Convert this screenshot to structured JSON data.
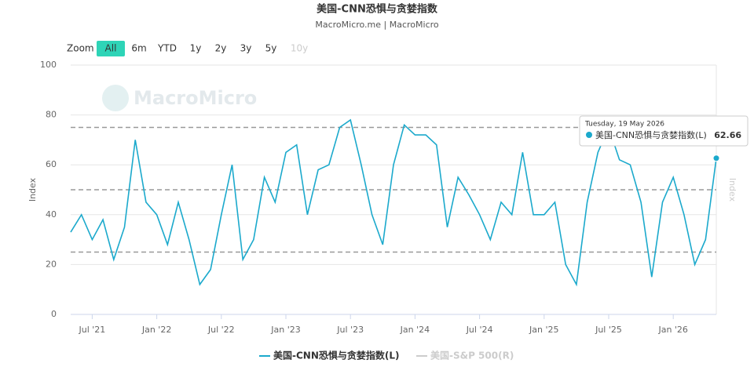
{
  "chart_data": {
    "type": "line",
    "title": "美国-CNN恐惧与贪婪指数",
    "subtitle": "MacroMicro.me | MacroMicro",
    "watermark": "MacroMicro",
    "range_selector": {
      "label": "Zoom",
      "buttons": [
        "All",
        "6m",
        "YTD",
        "1y",
        "2y",
        "3y",
        "5y",
        "10y"
      ],
      "selected": 0,
      "disabled": [
        7
      ]
    },
    "y_label": "Index",
    "y2_label": "Index",
    "x": [
      "2021-05",
      "2021-06",
      "2021-07",
      "2021-08",
      "2021-09",
      "2021-10",
      "2021-11",
      "2021-12",
      "2022-01",
      "2022-02",
      "2022-03",
      "2022-04",
      "2022-05",
      "2022-06",
      "2022-07",
      "2022-08",
      "2022-09",
      "2022-10",
      "2022-11",
      "2022-12",
      "2023-01",
      "2023-02",
      "2023-03",
      "2023-04",
      "2023-05",
      "2023-06",
      "2023-07",
      "2023-08",
      "2023-09",
      "2023-10",
      "2023-11",
      "2023-12",
      "2024-01",
      "2024-02",
      "2024-03",
      "2024-04",
      "2024-05",
      "2024-06",
      "2024-07",
      "2024-08",
      "2024-09",
      "2024-10",
      "2024-11",
      "2024-12",
      "2025-01",
      "2025-02",
      "2025-03",
      "2025-04",
      "2025-05",
      "2025-06",
      "2025-07",
      "2025-08",
      "2025-09",
      "2025-10",
      "2025-11",
      "2025-12",
      "2026-01",
      "2026-02",
      "2026-03",
      "2026-04",
      "2026-05"
    ],
    "series": [
      {
        "name": "美国-CNN恐惧与贪婪指数(L)",
        "color": "#1ba9cc",
        "values": [
          33,
          40,
          30,
          38,
          22,
          35,
          70,
          45,
          40,
          28,
          45,
          30,
          12,
          18,
          40,
          60,
          22,
          30,
          55,
          45,
          65,
          68,
          40,
          58,
          60,
          75,
          78,
          60,
          40,
          28,
          60,
          76,
          72,
          72,
          68,
          35,
          55,
          48,
          40,
          30,
          45,
          40,
          65,
          40,
          40,
          45,
          20,
          12,
          45,
          65,
          75,
          62,
          60,
          45,
          15,
          45,
          55,
          40,
          20,
          30,
          62.66
        ]
      },
      {
        "name": "美国-S&P 500(R)",
        "color": "#cccccc",
        "visible": false
      }
    ],
    "tooltip": {
      "date": "Tuesday, 19 May 2026"
    },
    "xlim": [
      "2021-05",
      "2026-05"
    ],
    "xticks": [
      {
        "value": "2021-07",
        "label": "Jul '21"
      },
      {
        "value": "2022-01",
        "label": "Jan '22"
      },
      {
        "value": "2022-07",
        "label": "Jul '22"
      },
      {
        "value": "2023-01",
        "label": "Jan '23"
      },
      {
        "value": "2023-07",
        "label": "Jul '23"
      },
      {
        "value": "2024-01",
        "label": "Jan '24"
      },
      {
        "value": "2024-07",
        "label": "Jul '24"
      },
      {
        "value": "2025-01",
        "label": "Jan '25"
      },
      {
        "value": "2025-07",
        "label": "Jul '25"
      },
      {
        "value": "2026-01",
        "label": "Jan '26"
      }
    ],
    "ylim": [
      0,
      100
    ],
    "yticks": [
      0,
      20,
      40,
      60,
      80,
      100
    ],
    "plot_lines": [
      25,
      50,
      75
    ],
    "grid": true
  }
}
